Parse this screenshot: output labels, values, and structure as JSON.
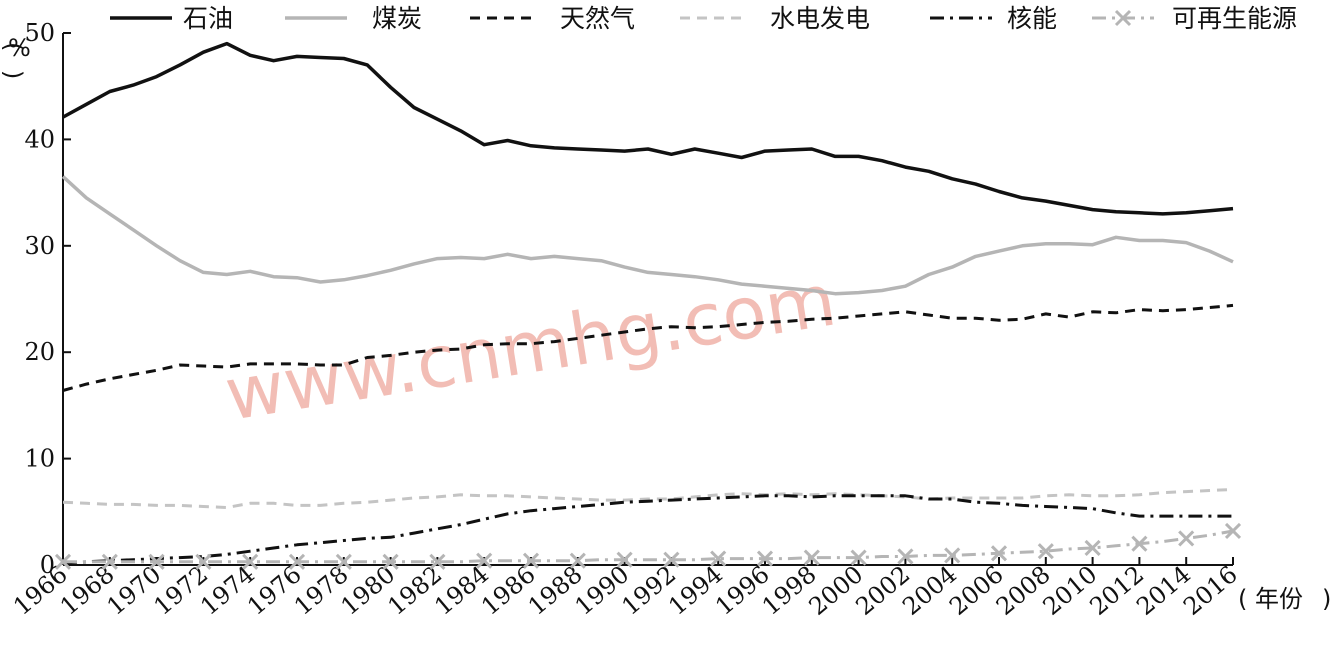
{
  "chart_data": {
    "type": "line",
    "ylabel": "%",
    "xlabel": "年份",
    "ylim": [
      0,
      50
    ],
    "xlim": [
      1966,
      2016
    ],
    "y_ticks": [
      "0",
      "10",
      "20",
      "30",
      "40",
      "50"
    ],
    "x_ticks": [
      "1966",
      "1968",
      "1970",
      "1972",
      "1974",
      "1976",
      "1978",
      "1980",
      "1982",
      "1984",
      "1986",
      "1988",
      "1990",
      "1992",
      "1994",
      "1996",
      "1998",
      "2000",
      "2002",
      "2004",
      "2006",
      "2008",
      "2010",
      "2012",
      "2014",
      "2016"
    ],
    "grid": false,
    "legend_position": "top",
    "watermark": "www.cnmhg.com",
    "x": [
      1966,
      1967,
      1968,
      1969,
      1970,
      1971,
      1972,
      1973,
      1974,
      1975,
      1976,
      1977,
      1978,
      1979,
      1980,
      1981,
      1982,
      1983,
      1984,
      1985,
      1986,
      1987,
      1988,
      1989,
      1990,
      1991,
      1992,
      1993,
      1994,
      1995,
      1996,
      1997,
      1998,
      1999,
      2000,
      2001,
      2002,
      2003,
      2004,
      2005,
      2006,
      2007,
      2008,
      2009,
      2010,
      2011,
      2012,
      2013,
      2014,
      2015,
      2016
    ],
    "series": [
      {
        "name": "石油",
        "color": "#111111",
        "dash": "solid",
        "marker": "none",
        "values": [
          42.1,
          43.3,
          44.5,
          45.1,
          45.9,
          47.0,
          48.2,
          49.0,
          47.9,
          47.4,
          47.8,
          47.7,
          47.6,
          47.0,
          44.9,
          43.0,
          41.9,
          40.8,
          39.5,
          39.9,
          39.4,
          39.2,
          39.1,
          39.0,
          38.9,
          39.1,
          38.6,
          39.1,
          38.7,
          38.3,
          38.9,
          39.0,
          39.1,
          38.4,
          38.4,
          38.0,
          37.4,
          37.0,
          36.3,
          35.8,
          35.1,
          34.5,
          34.2,
          33.8,
          33.4,
          33.2,
          33.1,
          33.0,
          33.1,
          33.3,
          33.5
        ]
      },
      {
        "name": "煤炭",
        "color": "#b5b5b5",
        "dash": "solid",
        "marker": "none",
        "values": [
          36.5,
          34.5,
          33.0,
          31.5,
          30.0,
          28.6,
          27.5,
          27.3,
          27.6,
          27.1,
          27.0,
          26.6,
          26.8,
          27.2,
          27.7,
          28.3,
          28.8,
          28.9,
          28.8,
          29.2,
          28.8,
          29.0,
          28.8,
          28.6,
          28.0,
          27.5,
          27.3,
          27.1,
          26.8,
          26.4,
          26.2,
          26.0,
          25.8,
          25.5,
          25.6,
          25.8,
          26.2,
          27.3,
          28.0,
          29.0,
          29.5,
          30.0,
          30.2,
          30.2,
          30.1,
          30.8,
          30.5,
          30.5,
          30.3,
          29.5,
          28.5
        ]
      },
      {
        "name": "天然气",
        "color": "#111111",
        "dash": "dash",
        "marker": "none",
        "values": [
          16.4,
          17.0,
          17.5,
          17.9,
          18.3,
          18.8,
          18.7,
          18.6,
          18.9,
          18.9,
          18.9,
          18.8,
          18.8,
          19.5,
          19.7,
          20.0,
          20.2,
          20.3,
          20.7,
          20.8,
          20.8,
          21.0,
          21.3,
          21.6,
          21.9,
          22.2,
          22.4,
          22.3,
          22.4,
          22.6,
          22.8,
          22.9,
          23.1,
          23.2,
          23.4,
          23.6,
          23.8,
          23.5,
          23.2,
          23.2,
          23.0,
          23.1,
          23.6,
          23.3,
          23.8,
          23.7,
          24.0,
          23.9,
          24.0,
          24.2,
          24.4
        ]
      },
      {
        "name": "水电发电",
        "color": "#c4c4c4",
        "dash": "dash",
        "marker": "none",
        "values": [
          5.9,
          5.8,
          5.7,
          5.7,
          5.6,
          5.6,
          5.5,
          5.4,
          5.8,
          5.8,
          5.6,
          5.6,
          5.8,
          5.9,
          6.1,
          6.3,
          6.4,
          6.6,
          6.5,
          6.5,
          6.4,
          6.3,
          6.2,
          6.1,
          6.1,
          6.2,
          6.2,
          6.4,
          6.6,
          6.7,
          6.6,
          6.7,
          6.6,
          6.7,
          6.6,
          6.5,
          6.4,
          6.2,
          6.3,
          6.3,
          6.3,
          6.3,
          6.5,
          6.6,
          6.5,
          6.5,
          6.6,
          6.8,
          6.9,
          7.0,
          7.1
        ]
      },
      {
        "name": "核能",
        "color": "#111111",
        "dash": "dashdot",
        "marker": "none",
        "values": [
          0.2,
          0.3,
          0.4,
          0.5,
          0.6,
          0.7,
          0.8,
          1.0,
          1.3,
          1.6,
          1.9,
          2.1,
          2.3,
          2.5,
          2.6,
          3.0,
          3.4,
          3.8,
          4.3,
          4.8,
          5.1,
          5.3,
          5.5,
          5.7,
          5.9,
          6.0,
          6.1,
          6.2,
          6.3,
          6.4,
          6.5,
          6.5,
          6.4,
          6.5,
          6.5,
          6.5,
          6.5,
          6.2,
          6.2,
          5.9,
          5.8,
          5.6,
          5.5,
          5.4,
          5.3,
          4.9,
          4.6,
          4.6,
          4.6,
          4.6,
          4.6
        ]
      },
      {
        "name": "可再生能源",
        "color": "#b5b5b5",
        "dash": "dashdot",
        "marker": "x",
        "values": [
          0.3,
          0.3,
          0.3,
          0.3,
          0.3,
          0.3,
          0.3,
          0.3,
          0.3,
          0.3,
          0.3,
          0.3,
          0.3,
          0.3,
          0.3,
          0.3,
          0.3,
          0.3,
          0.4,
          0.4,
          0.4,
          0.4,
          0.4,
          0.5,
          0.5,
          0.5,
          0.5,
          0.5,
          0.6,
          0.6,
          0.6,
          0.6,
          0.7,
          0.7,
          0.7,
          0.8,
          0.8,
          0.9,
          0.9,
          1.0,
          1.1,
          1.2,
          1.3,
          1.5,
          1.6,
          1.8,
          2.0,
          2.2,
          2.5,
          2.8,
          3.2
        ]
      }
    ]
  }
}
